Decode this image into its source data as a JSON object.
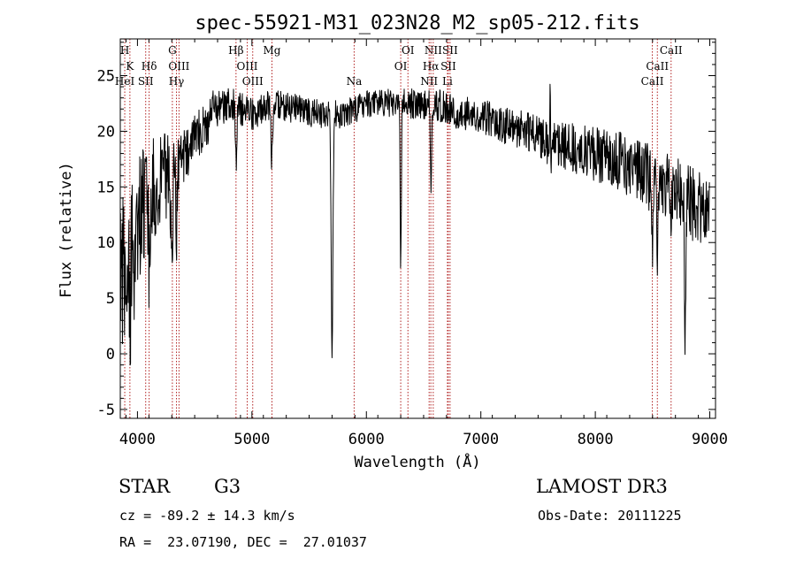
{
  "chart_data": {
    "type": "line",
    "title": "spec-55921-M31_023N28_M2_sp05-212.fits",
    "xlabel": "Wavelength (Å)",
    "ylabel": "Flux (relative)",
    "xlim": [
      3850,
      9050
    ],
    "ylim": [
      -5.8,
      28.3
    ],
    "x_ticks": [
      4000,
      5000,
      6000,
      7000,
      8000,
      9000
    ],
    "y_ticks": [
      -5,
      0,
      5,
      10,
      15,
      20,
      25
    ],
    "line_color": "#000000",
    "marker_color": "#b22222",
    "continuum": {
      "x": [
        3850,
        3900,
        4000,
        4100,
        4200,
        4300,
        4400,
        4500,
        4600,
        4700,
        4800,
        4900,
        5000,
        5100,
        5200,
        5400,
        5600,
        5800,
        6000,
        6200,
        6400,
        6600,
        6800,
        7000,
        7200,
        7400,
        7600,
        7800,
        8000,
        8200,
        8400,
        8600,
        8800,
        9000
      ],
      "y": [
        6,
        9,
        12,
        14,
        15.5,
        16.5,
        17.5,
        19.5,
        20.5,
        22,
        22.5,
        22,
        21.5,
        22,
        22.5,
        22,
        21.5,
        21.5,
        22.5,
        22.5,
        22.5,
        22.5,
        21.5,
        21.5,
        20.5,
        20,
        19,
        18.5,
        18,
        17.5,
        16,
        15.5,
        14,
        12
      ]
    },
    "absorption_features": [
      {
        "x": 3934,
        "depth": 8,
        "width": 6
      },
      {
        "x": 3969,
        "depth": 8,
        "width": 6
      },
      {
        "x": 4101,
        "depth": 5,
        "width": 6
      },
      {
        "x": 4300,
        "depth": 9,
        "width": 8
      },
      {
        "x": 4340,
        "depth": 6,
        "width": 6
      },
      {
        "x": 4861,
        "depth": 5,
        "width": 6
      },
      {
        "x": 5175,
        "depth": 5,
        "width": 8
      },
      {
        "x": 5700,
        "depth": 21,
        "width": 8
      },
      {
        "x": 6300,
        "depth": 15,
        "width": 5
      },
      {
        "x": 6563,
        "depth": 7,
        "width": 6
      },
      {
        "x": 7600,
        "depth": 3,
        "width": 10
      },
      {
        "x": 8500,
        "depth": 6,
        "width": 6
      },
      {
        "x": 8542,
        "depth": 6,
        "width": 6
      },
      {
        "x": 8662,
        "depth": 4,
        "width": 6
      },
      {
        "x": 8785,
        "depth": 12,
        "width": 6
      }
    ],
    "emission_features": [
      {
        "x": 7605,
        "height": 8,
        "width": 3
      },
      {
        "x": 4660,
        "height": 4,
        "width": 3
      }
    ],
    "noise_levels": {
      "x": [
        3850,
        4000,
        4200,
        4400,
        4800,
        6000,
        7500,
        8400,
        9050
      ],
      "amplitude": [
        7,
        6,
        4.5,
        2.5,
        1.5,
        1.2,
        1.8,
        3,
        3.5
      ]
    },
    "line_markers": [
      {
        "label": "H",
        "x": 3889,
        "row": 0
      },
      {
        "label": "K",
        "x": 3934,
        "row": 1
      },
      {
        "label": "HeI",
        "x": 3889,
        "row": 2
      },
      {
        "label": "SII",
        "x": 4072,
        "row": 2
      },
      {
        "label": "Hδ",
        "x": 4102,
        "row": 1
      },
      {
        "label": "G",
        "x": 4305,
        "row": 0
      },
      {
        "label": "OIII",
        "x": 4363,
        "row": 1
      },
      {
        "label": "Hγ",
        "x": 4341,
        "row": 2
      },
      {
        "label": "Hβ",
        "x": 4861,
        "row": 0
      },
      {
        "label": "OIII",
        "x": 4959,
        "row": 1
      },
      {
        "label": "OIII",
        "x": 5007,
        "row": 2
      },
      {
        "label": "Mg",
        "x": 5175,
        "row": 0
      },
      {
        "label": "Na",
        "x": 5893,
        "row": 2
      },
      {
        "label": "OI",
        "x": 6363,
        "row": 0
      },
      {
        "label": "OI",
        "x": 6300,
        "row": 1
      },
      {
        "label": "NII",
        "x": 6584,
        "row": 0
      },
      {
        "label": "SII",
        "x": 6731,
        "row": 0
      },
      {
        "label": "Hα",
        "x": 6563,
        "row": 1
      },
      {
        "label": "SII",
        "x": 6716,
        "row": 1
      },
      {
        "label": "NII",
        "x": 6548,
        "row": 2
      },
      {
        "label": "Li",
        "x": 6708,
        "row": 2
      },
      {
        "label": "CaII",
        "x": 8662,
        "row": 0
      },
      {
        "label": "CaII",
        "x": 8542,
        "row": 1
      },
      {
        "label": "CaII",
        "x": 8498,
        "row": 2
      }
    ]
  },
  "info": {
    "object_class": "STAR",
    "subclass": "G3",
    "survey": "LAMOST DR3",
    "redshift": "cz = -89.2 ± 14.3 km/s",
    "obs_date": "Obs-Date: 20111225",
    "coords": "RA =  23.07190, DEC =  27.01037"
  }
}
